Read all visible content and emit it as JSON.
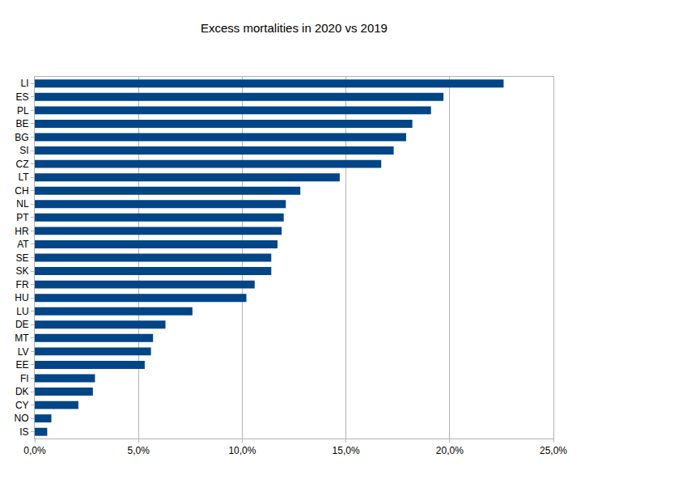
{
  "chart_data": {
    "type": "bar",
    "title": "Excess mortalities in 2020 vs 2019",
    "orientation": "horizontal",
    "categories": [
      "LI",
      "ES",
      "PL",
      "BE",
      "BG",
      "SI",
      "CZ",
      "LT",
      "CH",
      "NL",
      "PT",
      "HR",
      "AT",
      "SE",
      "SK",
      "FR",
      "HU",
      "LU",
      "DE",
      "MT",
      "LV",
      "EE",
      "FI",
      "DK",
      "CY",
      "NO",
      "IS"
    ],
    "values": [
      22.6,
      19.7,
      19.1,
      18.2,
      17.9,
      17.3,
      16.7,
      14.7,
      12.8,
      12.1,
      12.0,
      11.9,
      11.7,
      11.4,
      11.4,
      10.6,
      10.2,
      7.6,
      6.3,
      5.7,
      5.6,
      5.3,
      2.9,
      2.8,
      2.1,
      0.8,
      0.6
    ],
    "color": "#004586",
    "xlim": [
      0,
      25
    ],
    "xticks": [
      {
        "value": 0,
        "label": "0,0%"
      },
      {
        "value": 5,
        "label": "5,0%"
      },
      {
        "value": 10,
        "label": "10,0%"
      },
      {
        "value": 15,
        "label": "15,0%"
      },
      {
        "value": 20,
        "label": "20,0%"
      },
      {
        "value": 25,
        "label": "25,0%"
      }
    ],
    "grid": true
  }
}
